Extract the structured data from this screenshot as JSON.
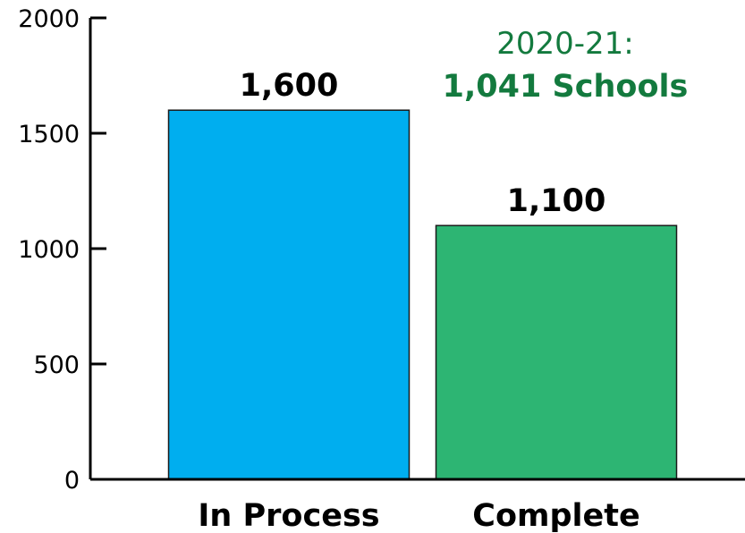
{
  "chart_data": {
    "type": "bar",
    "categories": [
      "In Process",
      "Complete"
    ],
    "values": [
      1600,
      1100
    ],
    "value_labels": [
      "1,600",
      "1,100"
    ],
    "bar_colors": [
      "#00aeef",
      "#2db573"
    ],
    "ylim": [
      0,
      2000
    ],
    "yticks": [
      0,
      500,
      1000,
      1500,
      2000
    ],
    "ytick_labels": [
      "0",
      "500",
      "1000",
      "1500",
      "2000"
    ],
    "title": "",
    "xlabel": "",
    "ylabel": "",
    "grid": false,
    "annotation": {
      "line1": "2020-21:",
      "line2": "1,041 Schools",
      "color": "#137a3e"
    }
  }
}
